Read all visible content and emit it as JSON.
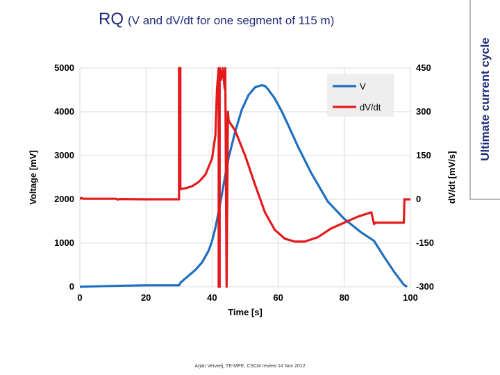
{
  "slide": {
    "title": "RQ",
    "subtitle": "(V and dV/dt for one segment of 115 m)",
    "side_banner": "Ultimate current cycle",
    "footer": "Arjan Verweij, TE-MPE, CSCM review 14 Nov 2012"
  },
  "colors": {
    "title": "#1f2a7a",
    "voltage": "#1f6fbf",
    "derivative": "#e31a1c",
    "grid": "#d9d9d9"
  },
  "chart_data": {
    "type": "line",
    "title": "",
    "xlabel": "Time [s]",
    "ylabel": "Voltage [mV]",
    "y2label": "dV/dt [mV/s]",
    "xlim": [
      0,
      100
    ],
    "ylim": [
      0,
      5000
    ],
    "y2lim": [
      -300,
      450
    ],
    "x_ticks": [
      0,
      20,
      40,
      60,
      80,
      100
    ],
    "x_tick_labels": [
      "0",
      "20",
      "40",
      "60",
      "80",
      "100"
    ],
    "y_ticks": [
      0,
      1000,
      2000,
      3000,
      4000,
      5000
    ],
    "y_tick_labels": [
      "0",
      "1000",
      "2000",
      "3000",
      "4000",
      "5000"
    ],
    "y2_ticks": [
      -300,
      -150,
      0,
      150,
      300,
      450
    ],
    "y2_tick_labels": [
      "-300",
      "-150",
      "0",
      "150",
      "300",
      "450"
    ],
    "grid": true,
    "legend_position": "top-right",
    "series": [
      {
        "name": "V",
        "axis": "left",
        "x": [
          0,
          10,
          20,
          30,
          30.5,
          33,
          35,
          37,
          39,
          40,
          41,
          42,
          43,
          44,
          45,
          47,
          49,
          51,
          53,
          55,
          56,
          57,
          59,
          61,
          63,
          66,
          70,
          75,
          80,
          85,
          88,
          89,
          92,
          95,
          98,
          99
        ],
        "values": [
          0,
          20,
          35,
          35,
          100,
          260,
          390,
          560,
          830,
          1050,
          1350,
          1720,
          2130,
          2550,
          2950,
          3550,
          4050,
          4380,
          4560,
          4610,
          4590,
          4510,
          4300,
          4020,
          3700,
          3200,
          2600,
          1950,
          1550,
          1250,
          1100,
          1050,
          690,
          350,
          50,
          0
        ]
      },
      {
        "name": "dV/dt",
        "axis": "right",
        "x": [
          0,
          0.4,
          1,
          11,
          11.4,
          12,
          20,
          30,
          30,
          30.4,
          30.4,
          32,
          34,
          36,
          38,
          40,
          41,
          41.5,
          42,
          42,
          42.3,
          42.3,
          42.7,
          43.2,
          43.8,
          44,
          44.4,
          44.4,
          44.8,
          45,
          47,
          50,
          53,
          56,
          59,
          62,
          65,
          68,
          72,
          76,
          80,
          84,
          88,
          88.2,
          89,
          89.4,
          91,
          95,
          98,
          98.2,
          99,
          100
        ],
        "values": [
          0,
          5,
          2,
          2,
          -1,
          1,
          0,
          0,
          450,
          450,
          35,
          38,
          45,
          60,
          85,
          140,
          220,
          380,
          450,
          -300,
          -300,
          450,
          410,
          450,
          380,
          450,
          -300,
          -300,
          300,
          270,
          235,
          150,
          50,
          -45,
          -105,
          -135,
          -145,
          -145,
          -130,
          -100,
          -80,
          -60,
          -45,
          -45,
          -85,
          -80,
          -80,
          -80,
          -80,
          0,
          0,
          0
        ]
      }
    ]
  }
}
